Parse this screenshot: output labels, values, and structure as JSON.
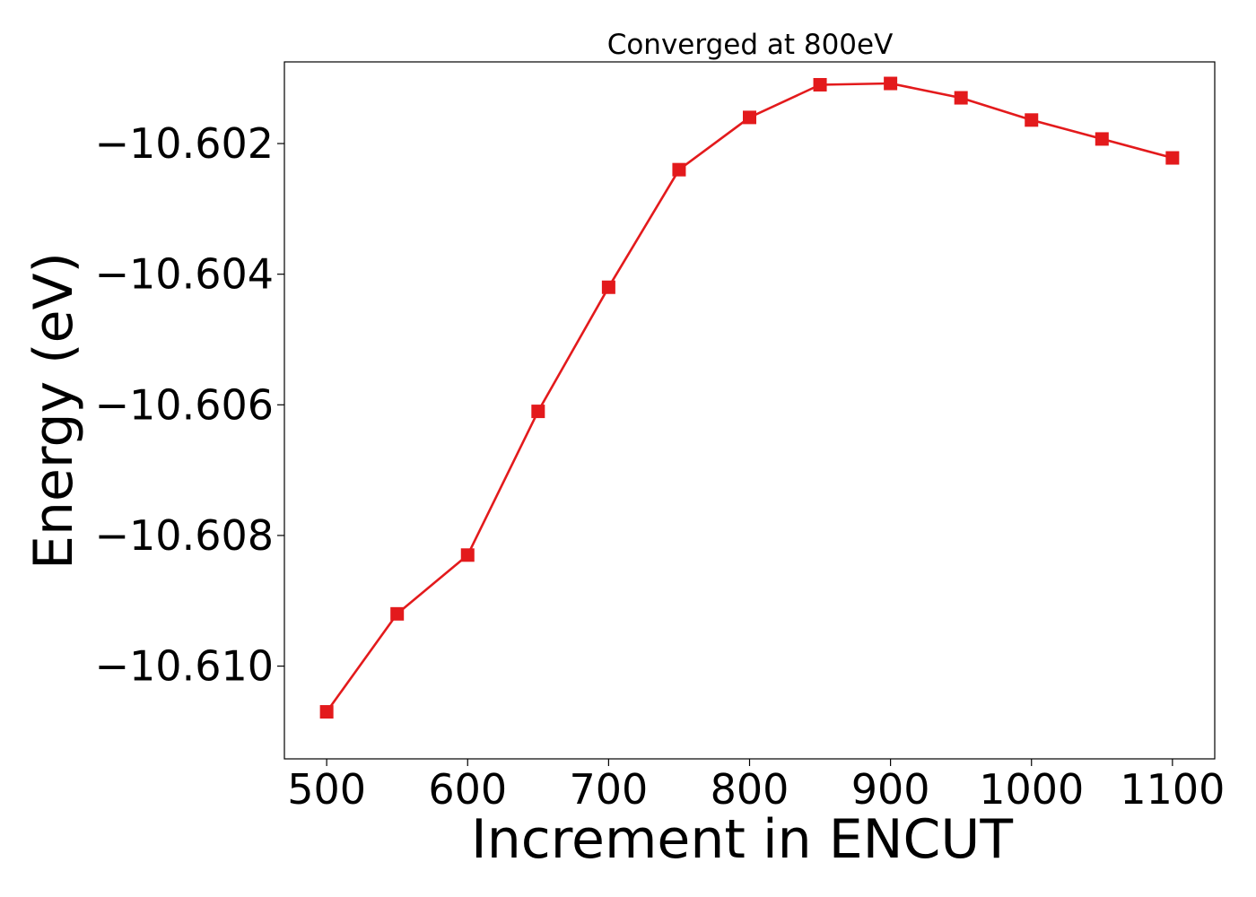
{
  "chart_data": {
    "type": "line",
    "title": "Converged at 800eV",
    "xlabel": "Increment in ENCUT",
    "ylabel": "Energy (eV)",
    "x": [
      500,
      550,
      600,
      650,
      700,
      750,
      800,
      850,
      900,
      950,
      1000,
      1050,
      1100
    ],
    "series": [
      {
        "values": [
          -10.6107,
          -10.6092,
          -10.6083,
          -10.6061,
          -10.6042,
          -10.6024,
          -10.6016,
          -10.6011,
          -10.60108,
          -10.6013,
          -10.60164,
          -10.60193,
          -10.60222
        ],
        "color": "#e31a1c",
        "marker": "square"
      }
    ],
    "xticks": [
      500,
      600,
      700,
      800,
      900,
      1000,
      1100
    ],
    "xtick_labels": [
      "500",
      "600",
      "700",
      "800",
      "900",
      "1000",
      "1100"
    ],
    "yticks": [
      -10.602,
      -10.604,
      -10.606,
      -10.608,
      -10.61
    ],
    "ytick_labels": [
      "−10.602",
      "−10.604",
      "−10.606",
      "−10.608",
      "−10.610"
    ],
    "xlim": [
      470,
      1130
    ],
    "ylim": [
      -10.61142,
      -10.60075
    ],
    "grid": false
  }
}
